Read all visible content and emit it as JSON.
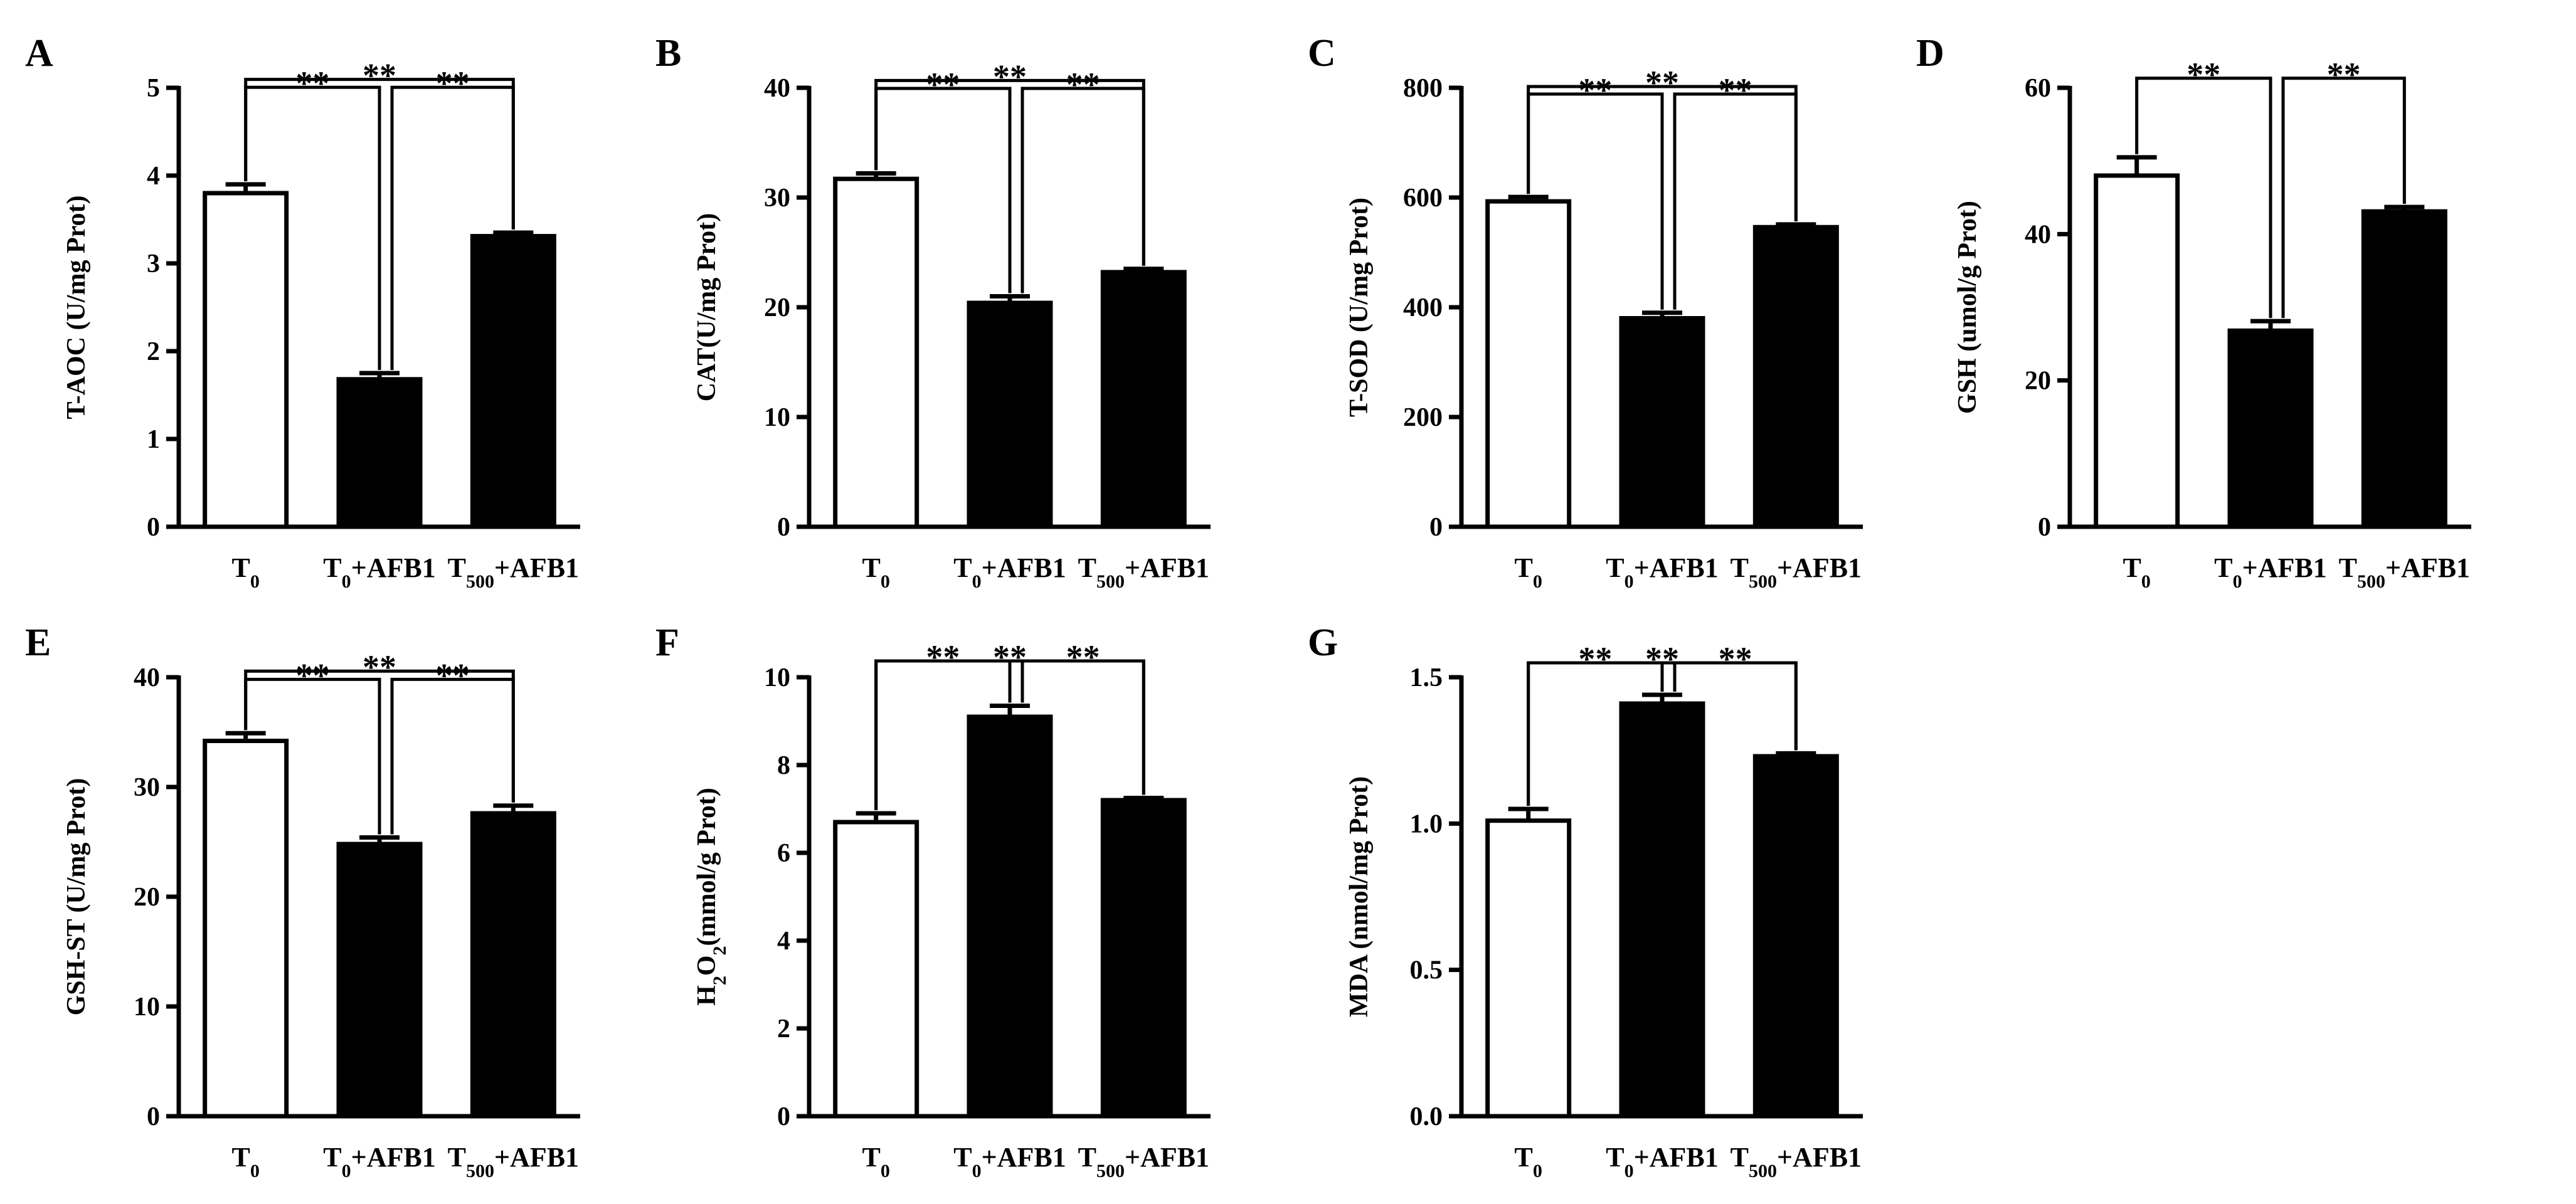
{
  "figure": {
    "bar_fill": {
      "control": "#ffffff",
      "treated": "#000000"
    },
    "sig_label": "**"
  },
  "chart_data": [
    {
      "panel": "A",
      "type": "bar",
      "ylabel": "T-AOC (U/mg Prot)",
      "ylim": [
        0,
        5
      ],
      "yticks": [
        "0",
        "1",
        "2",
        "3",
        "4",
        "5"
      ],
      "categories": [
        {
          "main": "T",
          "sub": "0",
          "rest": ""
        },
        {
          "main": "T",
          "sub": "0",
          "rest": "+AFB1"
        },
        {
          "main": "T",
          "sub": "500",
          "rest": "+AFB1"
        }
      ],
      "values": [
        3.8,
        1.68,
        3.31
      ],
      "errors": [
        0.1,
        0.07,
        0.04
      ],
      "comparisons": [
        {
          "from": 0,
          "to": 2,
          "label": "**",
          "level": 0.61
        },
        {
          "from": 0,
          "to": 1,
          "label": "**",
          "level": 0.82
        },
        {
          "from": 1,
          "to": 2,
          "label": "**",
          "level": 0.82
        }
      ]
    },
    {
      "panel": "B",
      "type": "bar",
      "ylabel": "CAT(U/mg Prot)",
      "ylim": [
        0,
        40
      ],
      "yticks": [
        "0",
        "10",
        "20",
        "30",
        "40"
      ],
      "categories": [
        {
          "main": "T",
          "sub": "0",
          "rest": ""
        },
        {
          "main": "T",
          "sub": "0",
          "rest": "+AFB1"
        },
        {
          "main": "T",
          "sub": "500",
          "rest": "+AFB1"
        }
      ],
      "values": [
        31.7,
        20.4,
        23.2
      ],
      "errors": [
        0.5,
        0.6,
        0.3
      ],
      "comparisons": [
        {
          "from": 0,
          "to": 2,
          "label": "**",
          "level": 0.64
        },
        {
          "from": 0,
          "to": 1,
          "label": "**",
          "level": 0.85
        },
        {
          "from": 1,
          "to": 2,
          "label": "**",
          "level": 0.85
        }
      ]
    },
    {
      "panel": "C",
      "type": "bar",
      "ylabel": "T-SOD (U/mg Prot)",
      "ylim": [
        0,
        800
      ],
      "yticks": [
        "0",
        "200",
        "400",
        "600",
        "800"
      ],
      "categories": [
        {
          "main": "T",
          "sub": "0",
          "rest": ""
        },
        {
          "main": "T",
          "sub": "0",
          "rest": "+AFB1"
        },
        {
          "main": "T",
          "sub": "500",
          "rest": "+AFB1"
        }
      ],
      "values": [
        593,
        380,
        546
      ],
      "errors": [
        8,
        10,
        5
      ],
      "comparisons": [
        {
          "from": 0,
          "to": 2,
          "label": "**",
          "level": 0.8
        },
        {
          "from": 0,
          "to": 1,
          "label": "**",
          "level": 1.0
        },
        {
          "from": 1,
          "to": 2,
          "label": "**",
          "level": 1.0
        }
      ]
    },
    {
      "panel": "D",
      "type": "bar",
      "ylabel": "GSH (umol/g Prot)",
      "ylim": [
        0,
        60
      ],
      "yticks": [
        "0",
        "20",
        "40",
        "60"
      ],
      "categories": [
        {
          "main": "T",
          "sub": "0",
          "rest": ""
        },
        {
          "main": "T",
          "sub": "0",
          "rest": "+AFB1"
        },
        {
          "main": "T",
          "sub": "500",
          "rest": "+AFB1"
        }
      ],
      "values": [
        48,
        26.8,
        43.1
      ],
      "errors": [
        2.5,
        1.3,
        0.6
      ],
      "comparisons": [
        {
          "from": 0,
          "to": 1,
          "label": "**",
          "level": 0.58
        },
        {
          "from": 1,
          "to": 2,
          "label": "**",
          "level": 0.58
        }
      ]
    },
    {
      "panel": "E",
      "type": "bar",
      "ylabel": "GSH-ST (U/mg Prot)",
      "ylim": [
        0,
        40
      ],
      "yticks": [
        "0",
        "10",
        "20",
        "30",
        "40"
      ],
      "categories": [
        {
          "main": "T",
          "sub": "0",
          "rest": ""
        },
        {
          "main": "T",
          "sub": "0",
          "rest": "+AFB1"
        },
        {
          "main": "T",
          "sub": "500",
          "rest": "+AFB1"
        }
      ],
      "values": [
        34.2,
        24.8,
        27.6
      ],
      "errors": [
        0.7,
        0.6,
        0.7
      ],
      "comparisons": [
        {
          "from": 0,
          "to": 2,
          "label": "**",
          "level": 0.67
        },
        {
          "from": 0,
          "to": 1,
          "label": "**",
          "level": 0.89
        },
        {
          "from": 1,
          "to": 2,
          "label": "**",
          "level": 0.89
        }
      ]
    },
    {
      "panel": "F",
      "type": "bar",
      "ylabel_parts": [
        {
          "t": "H",
          "sub": false
        },
        {
          "t": "2",
          "sub": true
        },
        {
          "t": "O",
          "sub": false
        },
        {
          "t": "2",
          "sub": true
        },
        {
          "t": "(mmol/g Prot)",
          "sub": false
        }
      ],
      "ylim": [
        0,
        10
      ],
      "yticks": [
        "0",
        "2",
        "4",
        "6",
        "8",
        "10"
      ],
      "categories": [
        {
          "main": "T",
          "sub": "0",
          "rest": ""
        },
        {
          "main": "T",
          "sub": "0",
          "rest": "+AFB1"
        },
        {
          "main": "T",
          "sub": "500",
          "rest": "+AFB1"
        }
      ],
      "values": [
        6.7,
        9.1,
        7.2
      ],
      "errors": [
        0.2,
        0.25,
        0.05
      ],
      "comparisons": [
        {
          "from": 0,
          "to": 2,
          "label": "**",
          "level": 0.4
        },
        {
          "from": 0,
          "to": 1,
          "label": "**",
          "level": 0.4
        },
        {
          "from": 1,
          "to": 2,
          "label": "**",
          "level": 0.4
        }
      ]
    },
    {
      "panel": "G",
      "type": "bar",
      "ylabel": "MDA (nmol/mg Prot)",
      "ylim": [
        0,
        1.5
      ],
      "yticks": [
        "0.0",
        "0.5",
        "1.0",
        "1.5"
      ],
      "categories": [
        {
          "main": "T",
          "sub": "0",
          "rest": ""
        },
        {
          "main": "T",
          "sub": "0",
          "rest": "+AFB1"
        },
        {
          "main": "T",
          "sub": "500",
          "rest": "+AFB1"
        }
      ],
      "values": [
        1.01,
        1.41,
        1.23
      ],
      "errors": [
        0.04,
        0.03,
        0.01
      ],
      "comparisons": [
        {
          "from": 0,
          "to": 2,
          "label": "**",
          "level": 0.45
        },
        {
          "from": 0,
          "to": 1,
          "label": "**",
          "level": 0.45
        },
        {
          "from": 1,
          "to": 2,
          "label": "**",
          "level": 0.45
        }
      ]
    }
  ]
}
